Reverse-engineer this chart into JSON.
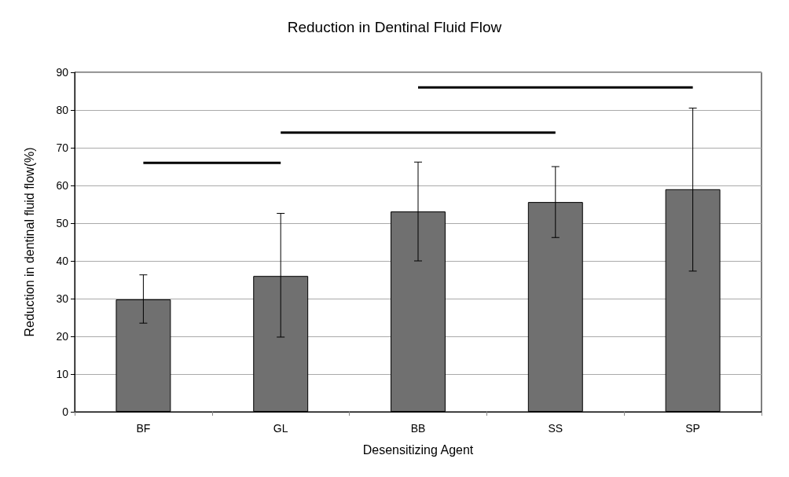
{
  "chart_data": {
    "type": "bar",
    "title": "Reduction in Dentinal Fluid Flow",
    "xlabel": "Desensitizing Agent",
    "ylabel": "Reduction in dentinal fluid flow(%)",
    "categories": [
      "BF",
      "GL",
      "BB",
      "SS",
      "SP"
    ],
    "series": [
      {
        "color": "#707070",
        "values": [
          29.8,
          36.0,
          53.1,
          55.6,
          59.0
        ],
        "errors": [
          [
            23.5,
            36.3
          ],
          [
            19.8,
            52.6
          ],
          [
            40.0,
            66.2
          ],
          [
            46.2,
            65.0
          ],
          [
            37.3,
            80.5
          ]
        ]
      },
      {
        "type": "line",
        "color": "#000000",
        "x": [
          "BF",
          "GL"
        ],
        "values": [
          66,
          66
        ]
      },
      {
        "type": "line",
        "color": "#000000",
        "x": [
          "GL",
          "SS"
        ],
        "values": [
          74,
          74
        ]
      },
      {
        "type": "line",
        "color": "#000000",
        "x": [
          "BB",
          "SP"
        ],
        "values": [
          86,
          86
        ]
      }
    ],
    "ylim": [
      0,
      90
    ],
    "yticks": [
      0,
      10,
      20,
      30,
      40,
      50,
      60,
      70,
      80,
      90
    ],
    "grid": "y",
    "marker": "none",
    "line_style": "solid"
  }
}
